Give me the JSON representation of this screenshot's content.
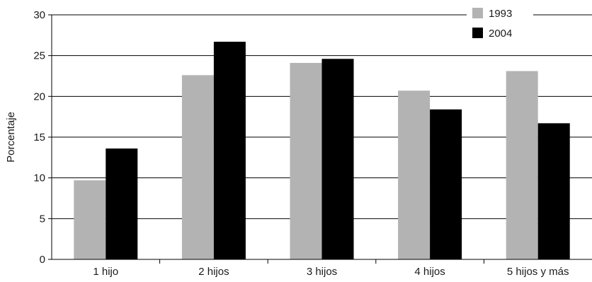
{
  "chart_data": {
    "type": "bar",
    "title": "",
    "xlabel": "",
    "ylabel": "Porcentaje",
    "categories": [
      "1 hijo",
      "2 hijos",
      "3 hijos",
      "4 hijos",
      "5 hijos y más"
    ],
    "series": [
      {
        "name": "1993",
        "values": [
          9.7,
          22.6,
          24.1,
          20.7,
          23.1
        ],
        "color": "#b3b3b3"
      },
      {
        "name": "2004",
        "values": [
          13.6,
          26.7,
          24.6,
          18.4,
          16.7
        ],
        "color": "#000000"
      }
    ],
    "ylim": [
      0,
      30
    ],
    "yticks": [
      0,
      5,
      10,
      15,
      20,
      25,
      30
    ],
    "grid": true,
    "legend_position": "top-right"
  }
}
